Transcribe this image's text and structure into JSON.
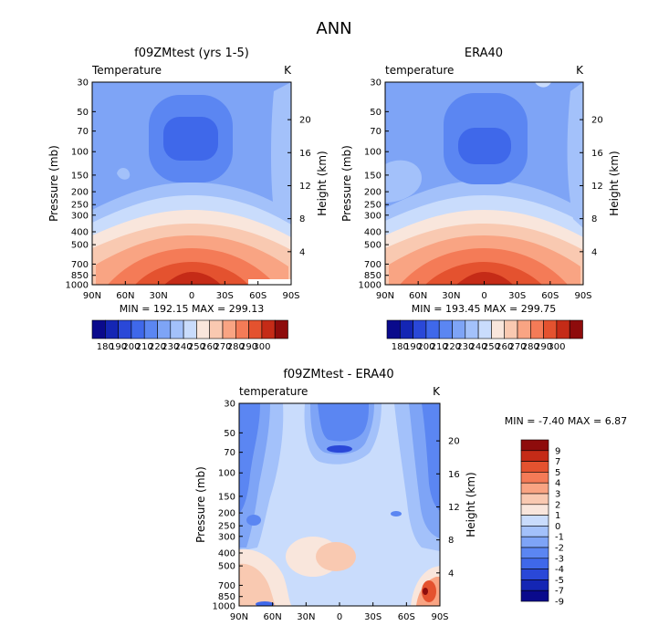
{
  "page_title": "ANN",
  "colors": {
    "abs_levels": [
      "#0a0a8c",
      "#1426b4",
      "#2a48d8",
      "#3f68ea",
      "#5b86f2",
      "#7ea4f6",
      "#a3c1fa",
      "#c9dcfc",
      "#f9e6dc",
      "#f9c9b1",
      "#f9a483",
      "#f47b57",
      "#e4522f",
      "#c52b17",
      "#8e0c0c"
    ],
    "diff_levels": [
      "#0a0a8c",
      "#1426b4",
      "#2a48d8",
      "#3f68ea",
      "#5b86f2",
      "#7ea4f6",
      "#a3c1fa",
      "#c9dcfc",
      "#f9e6dc",
      "#f9c9b1",
      "#f9a483",
      "#f47b57",
      "#e4522f",
      "#c52b17",
      "#8e0c0c"
    ]
  },
  "chart_data": [
    {
      "type": "contour",
      "panel": "model",
      "title": "f09ZMtest (yrs 1-5)",
      "left_label": "Temperature",
      "units_label": "K",
      "ylabel": "Pressure (mb)",
      "ylabel_right": "Height (km)",
      "x_ticks": [
        "90N",
        "60N",
        "30N",
        "0",
        "30S",
        "60S",
        "90S"
      ],
      "y_ticks": [
        "30",
        "50",
        "70",
        "100",
        "150",
        "200",
        "250",
        "300",
        "400",
        "500",
        "700",
        "850",
        "1000"
      ],
      "y_ticks_right": [
        "20",
        "16",
        "12",
        "8",
        "4"
      ],
      "min_max_text": "MIN =  192.15    MAX =  299.13",
      "min": 192.15,
      "max": 299.13,
      "colorbar_labels": [
        "180",
        "190",
        "200",
        "210",
        "220",
        "230",
        "240",
        "250",
        "260",
        "270",
        "280",
        "290",
        "300"
      ]
    },
    {
      "type": "contour",
      "panel": "obs",
      "title": "ERA40",
      "left_label": "temperature",
      "units_label": "K",
      "ylabel": "Pressure (mb)",
      "ylabel_right": "Height (km)",
      "x_ticks": [
        "90N",
        "60N",
        "30N",
        "0",
        "30S",
        "60S",
        "90S"
      ],
      "y_ticks": [
        "30",
        "50",
        "70",
        "100",
        "150",
        "200",
        "250",
        "300",
        "400",
        "500",
        "700",
        "850",
        "1000"
      ],
      "y_ticks_right": [
        "20",
        "16",
        "12",
        "8",
        "4"
      ],
      "min_max_text": "MIN =  193.45    MAX =  299.75",
      "min": 193.45,
      "max": 299.75,
      "colorbar_labels": [
        "180",
        "190",
        "200",
        "210",
        "220",
        "230",
        "240",
        "250",
        "260",
        "270",
        "280",
        "290",
        "300"
      ]
    },
    {
      "type": "contour",
      "panel": "diff",
      "title": "f09ZMtest - ERA40",
      "left_label": "temperature",
      "units_label": "K",
      "ylabel": "Pressure (mb)",
      "ylabel_right": "Height (km)",
      "x_ticks": [
        "90N",
        "60N",
        "30N",
        "0",
        "30S",
        "60S",
        "90S"
      ],
      "y_ticks": [
        "30",
        "50",
        "70",
        "100",
        "150",
        "200",
        "250",
        "300",
        "400",
        "500",
        "700",
        "850",
        "1000"
      ],
      "y_ticks_right": [
        "20",
        "16",
        "12",
        "8",
        "4"
      ],
      "min_max_text": "MIN =   -7.40    MAX =    6.87",
      "min": -7.4,
      "max": 6.87,
      "colorbar_labels": [
        "9",
        "7",
        "5",
        "4",
        "3",
        "2",
        "1",
        "0",
        "-1",
        "-2",
        "-3",
        "-4",
        "-5",
        "-7",
        "-9"
      ]
    }
  ]
}
